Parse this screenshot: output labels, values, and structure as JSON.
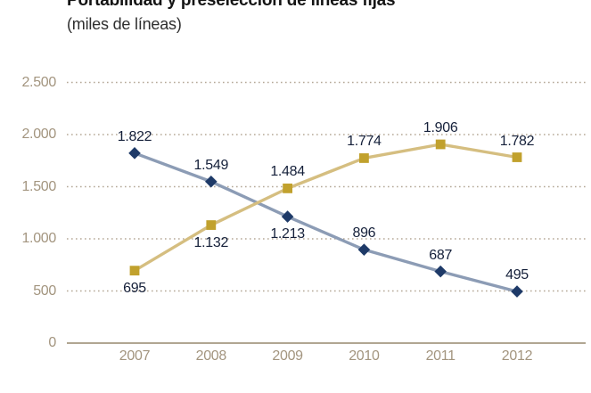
{
  "header": {
    "title": "Portabilidad y preselección de líneas fijas",
    "subtitle": "(miles de líneas)"
  },
  "chart_data": {
    "type": "line",
    "title": "Portabilidad y preselección de líneas fijas",
    "subtitle": "(miles de líneas)",
    "categories": [
      "2007",
      "2008",
      "2009",
      "2010",
      "2011",
      "2012"
    ],
    "ylim": [
      0,
      2500
    ],
    "grid": "horizontal-dotted",
    "legend": "none",
    "yticks": [
      {
        "label": "2.500",
        "value": 2500
      },
      {
        "label": "2.000",
        "value": 2000
      },
      {
        "label": "1.500",
        "value": 1500
      },
      {
        "label": "1.000",
        "value": 1000
      },
      {
        "label": "500",
        "value": 500
      },
      {
        "label": "0",
        "value": 0
      }
    ],
    "series": [
      {
        "id": "blue-diamond-series",
        "marker": "diamond",
        "line_color": "#8c9cb5",
        "marker_color": "#1e3a68",
        "values": [
          1822,
          1549,
          1213,
          896,
          687,
          495
        ],
        "labels": [
          "1.822",
          "1.549",
          "1.213",
          "896",
          "687",
          "495"
        ],
        "label_positions": [
          "above",
          "above",
          "below",
          "above",
          "above",
          "above"
        ]
      },
      {
        "id": "gold-square-series",
        "marker": "square",
        "line_color": "#d5be80",
        "marker_color": "#c1a12d",
        "values": [
          695,
          1132,
          1484,
          1774,
          1906,
          1782
        ],
        "labels": [
          "695",
          "1.132",
          "1.484",
          "1.774",
          "1.906",
          "1.782"
        ],
        "label_positions": [
          "below",
          "below",
          "above",
          "above",
          "above",
          "above"
        ]
      }
    ],
    "colors": {
      "grid": "#b5a897",
      "axis_line": "#97886f",
      "tick_text": "#a3957f",
      "data_label_text": "#15203a"
    }
  }
}
